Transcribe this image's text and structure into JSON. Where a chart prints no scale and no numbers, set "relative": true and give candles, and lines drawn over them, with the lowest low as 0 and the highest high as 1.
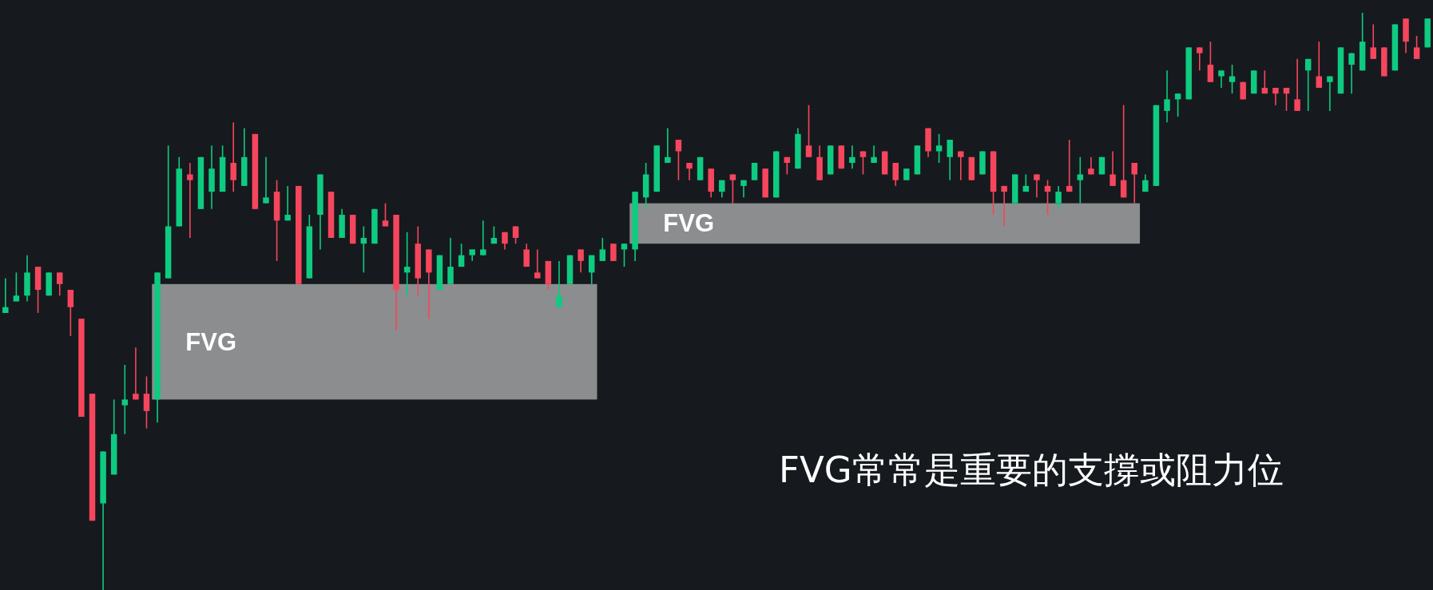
{
  "chart_data": {
    "type": "candlestick",
    "relative": true,
    "categories": [
      null,
      null,
      null,
      null,
      null,
      null,
      null,
      null,
      null,
      null,
      null,
      null,
      null,
      null,
      null,
      null,
      null,
      null,
      null,
      null,
      null,
      null,
      null,
      null,
      null,
      null,
      null,
      null,
      null,
      null,
      null,
      null,
      null,
      null,
      null,
      null,
      null,
      null,
      null,
      null,
      null,
      null,
      null,
      null,
      null,
      null,
      null,
      null,
      null,
      null,
      null,
      null,
      null,
      null,
      null,
      null,
      null,
      null,
      null,
      null,
      null,
      null,
      null,
      null,
      null,
      null,
      null,
      null,
      null,
      null,
      null,
      null,
      null,
      null,
      null,
      null,
      null,
      null,
      null,
      null,
      null,
      null,
      null,
      null,
      null,
      null,
      null,
      null,
      null,
      null,
      null,
      null,
      null,
      null,
      null,
      null,
      null,
      null,
      null,
      null,
      null,
      null,
      null,
      null,
      null,
      null,
      null,
      null,
      null,
      null,
      null,
      null,
      null,
      null,
      null,
      null,
      null,
      null,
      null,
      null,
      null,
      null,
      null,
      null,
      null,
      null,
      null,
      null,
      null,
      null,
      null,
      null
    ],
    "ohlc": [
      [
        0.48,
        0.54,
        0.48,
        0.49
      ],
      [
        0.5,
        0.55,
        0.5,
        0.51
      ],
      [
        0.51,
        0.58,
        0.5,
        0.55
      ],
      [
        0.56,
        0.56,
        0.48,
        0.52
      ],
      [
        0.51,
        0.55,
        0.51,
        0.55
      ],
      [
        0.55,
        0.55,
        0.51,
        0.53
      ],
      [
        0.52,
        0.52,
        0.44,
        0.49
      ],
      [
        0.47,
        0.47,
        0.3,
        0.3
      ],
      [
        0.34,
        0.34,
        0.12,
        0.12
      ],
      [
        0.15,
        0.24,
        0,
        0.24
      ],
      [
        0.2,
        0.33,
        0.2,
        0.27
      ],
      [
        0.32,
        0.39,
        0.27,
        0.33
      ],
      [
        0.34,
        0.42,
        0.33,
        0.33
      ],
      [
        0.34,
        0.37,
        0.28,
        0.31
      ],
      [
        0.33,
        0.55,
        0.29,
        0.55
      ],
      [
        0.54,
        0.77,
        0.54,
        0.63
      ],
      [
        0.63,
        0.75,
        0.63,
        0.73
      ],
      [
        0.72,
        0.74,
        0.61,
        0.71
      ],
      [
        0.66,
        0.75,
        0.66,
        0.75
      ],
      [
        0.69,
        0.77,
        0.66,
        0.73
      ],
      [
        0.69,
        0.77,
        0.69,
        0.75
      ],
      [
        0.74,
        0.81,
        0.69,
        0.71
      ],
      [
        0.7,
        0.8,
        0.7,
        0.75
      ],
      [
        0.79,
        0.79,
        0.66,
        0.66
      ],
      [
        0.67,
        0.75,
        0.67,
        0.68
      ],
      [
        0.69,
        0.71,
        0.57,
        0.64
      ],
      [
        0.64,
        0.7,
        0.64,
        0.65
      ],
      [
        0.7,
        0.7,
        0.53,
        0.53
      ],
      [
        0.54,
        0.65,
        0.54,
        0.63
      ],
      [
        0.65,
        0.72,
        0.59,
        0.72
      ],
      [
        0.69,
        0.69,
        0.61,
        0.61
      ],
      [
        0.61,
        0.66,
        0.61,
        0.65
      ],
      [
        0.65,
        0.65,
        0.6,
        0.6
      ],
      [
        0.6,
        0.63,
        0.55,
        0.61
      ],
      [
        0.6,
        0.66,
        0.6,
        0.66
      ],
      [
        0.64,
        0.67,
        0.63,
        0.63
      ],
      [
        0.65,
        0.65,
        0.45,
        0.52
      ],
      [
        0.55,
        0.62,
        0.51,
        0.56
      ],
      [
        0.6,
        0.63,
        0.51,
        0.54
      ],
      [
        0.59,
        0.59,
        0.47,
        0.55
      ],
      [
        0.52,
        0.58,
        0.52,
        0.58
      ],
      [
        0.53,
        0.61,
        0.53,
        0.56
      ],
      [
        0.56,
        0.6,
        0.56,
        0.58
      ],
      [
        0.58,
        0.59,
        0.57,
        0.59
      ],
      [
        0.58,
        0.64,
        0.58,
        0.59
      ],
      [
        0.6,
        0.63,
        0.6,
        0.61
      ],
      [
        0.62,
        0.62,
        0.59,
        0.6
      ],
      [
        0.63,
        0.63,
        0.6,
        0.61
      ],
      [
        0.59,
        0.6,
        0.56,
        0.56
      ],
      [
        0.55,
        0.59,
        0.54,
        0.54
      ],
      [
        0.57,
        0.57,
        0.52,
        0.53
      ],
      [
        0.49,
        0.57,
        0.49,
        0.51
      ],
      [
        0.53,
        0.58,
        0.53,
        0.58
      ],
      [
        0.59,
        0.59,
        0.55,
        0.57
      ],
      [
        0.55,
        0.58,
        0.53,
        0.58
      ],
      [
        0.57,
        0.61,
        0.57,
        0.59
      ],
      [
        0.6,
        0.6,
        0.57,
        0.57
      ],
      [
        0.59,
        0.6,
        0.56,
        0.6
      ],
      [
        0.59,
        0.69,
        0.57,
        0.69
      ],
      [
        0.68,
        0.74,
        0.66,
        0.72
      ],
      [
        0.69,
        0.77,
        0.69,
        0.77
      ],
      [
        0.74,
        0.8,
        0.74,
        0.75
      ],
      [
        0.78,
        0.78,
        0.71,
        0.76
      ],
      [
        0.74,
        0.74,
        0.71,
        0.73
      ],
      [
        0.71,
        0.75,
        0.71,
        0.75
      ],
      [
        0.73,
        0.73,
        0.68,
        0.69
      ],
      [
        0.69,
        0.71,
        0.68,
        0.71
      ],
      [
        0.72,
        0.72,
        0.67,
        0.71
      ],
      [
        0.7,
        0.71,
        0.68,
        0.71
      ],
      [
        0.71,
        0.74,
        0.71,
        0.74
      ],
      [
        0.73,
        0.73,
        0.68,
        0.68
      ],
      [
        0.68,
        0.76,
        0.68,
        0.76
      ],
      [
        0.75,
        0.75,
        0.72,
        0.74
      ],
      [
        0.73,
        0.8,
        0.73,
        0.79
      ],
      [
        0.77,
        0.84,
        0.75,
        0.75
      ],
      [
        0.75,
        0.77,
        0.71,
        0.71
      ],
      [
        0.72,
        0.77,
        0.72,
        0.77
      ],
      [
        0.77,
        0.77,
        0.73,
        0.73
      ],
      [
        0.74,
        0.77,
        0.73,
        0.75
      ],
      [
        0.76,
        0.76,
        0.72,
        0.75
      ],
      [
        0.74,
        0.77,
        0.74,
        0.75
      ],
      [
        0.76,
        0.76,
        0.72,
        0.72
      ],
      [
        0.74,
        0.74,
        0.7,
        0.71
      ],
      [
        0.71,
        0.73,
        0.71,
        0.73
      ],
      [
        0.72,
        0.77,
        0.72,
        0.77
      ],
      [
        0.8,
        0.8,
        0.75,
        0.76
      ],
      [
        0.76,
        0.79,
        0.74,
        0.77
      ],
      [
        0.75,
        0.78,
        0.71,
        0.78
      ],
      [
        0.76,
        0.76,
        0.71,
        0.75
      ],
      [
        0.75,
        0.75,
        0.71,
        0.71
      ],
      [
        0.72,
        0.76,
        0.72,
        0.76
      ],
      [
        0.76,
        0.76,
        0.65,
        0.69
      ],
      [
        0.7,
        0.7,
        0.63,
        0.69
      ],
      [
        0.67,
        0.72,
        0.67,
        0.72
      ],
      [
        0.69,
        0.72,
        0.69,
        0.7
      ],
      [
        0.72,
        0.72,
        0.68,
        0.71
      ],
      [
        0.7,
        0.71,
        0.65,
        0.69
      ],
      [
        0.67,
        0.7,
        0.66,
        0.69
      ],
      [
        0.7,
        0.78,
        0.69,
        0.69
      ],
      [
        0.71,
        0.75,
        0.67,
        0.72
      ],
      [
        0.73,
        0.75,
        0.72,
        0.72
      ],
      [
        0.72,
        0.75,
        0.72,
        0.75
      ],
      [
        0.72,
        0.76,
        0.7,
        0.7
      ],
      [
        0.71,
        0.84,
        0.68,
        0.68
      ],
      [
        0.74,
        0.74,
        0.67,
        0.72
      ],
      [
        0.69,
        0.72,
        0.69,
        0.71
      ],
      [
        0.7,
        0.84,
        0.7,
        0.84
      ],
      [
        0.83,
        0.9,
        0.81,
        0.85
      ],
      [
        0.85,
        0.86,
        0.82,
        0.86
      ],
      [
        0.85,
        0.94,
        0.85,
        0.94
      ],
      [
        0.94,
        0.94,
        0.9,
        0.93
      ],
      [
        0.91,
        0.95,
        0.88,
        0.88
      ],
      [
        0.89,
        0.9,
        0.87,
        0.9
      ],
      [
        0.88,
        0.91,
        0.86,
        0.89
      ],
      [
        0.88,
        0.88,
        0.85,
        0.85
      ],
      [
        0.86,
        0.9,
        0.86,
        0.9
      ],
      [
        0.87,
        0.9,
        0.86,
        0.86
      ],
      [
        0.87,
        0.87,
        0.84,
        0.86
      ],
      [
        0.87,
        0.87,
        0.83,
        0.86
      ],
      [
        0.85,
        0.92,
        0.83,
        0.83
      ],
      [
        0.9,
        0.92,
        0.83,
        0.92
      ],
      [
        0.89,
        0.95,
        0.87,
        0.87
      ],
      [
        0.88,
        0.89,
        0.83,
        0.89
      ],
      [
        0.86,
        0.94,
        0.86,
        0.94
      ],
      [
        0.91,
        0.93,
        0.86,
        0.93
      ],
      [
        0.9,
        1,
        0.9,
        0.95
      ],
      [
        0.94,
        0.98,
        0.92,
        0.92
      ],
      [
        0.94,
        0.94,
        0.89,
        0.89
      ],
      [
        0.9,
        0.98,
        0.9,
        0.98
      ],
      [
        0.99,
        0.99,
        0.93,
        0.95
      ],
      [
        0.94,
        0.96,
        0.92,
        0.92
      ],
      [
        0.94,
        0.99,
        0.94,
        0.99
      ]
    ],
    "colors": [
      "#0ecb81",
      "#0ecb81",
      "#0ecb81",
      "#f6465d",
      "#0ecb81",
      "#f6465d",
      "#f6465d",
      "#f6465d",
      "#f6465d",
      "#0ecb81",
      "#0ecb81",
      "#0ecb81",
      "#f6465d",
      "#f6465d",
      "#0ecb81",
      "#0ecb81",
      "#0ecb81",
      "#f6465d",
      "#0ecb81",
      "#0ecb81",
      "#0ecb81",
      "#f6465d",
      "#0ecb81",
      "#f6465d",
      "#0ecb81",
      "#f6465d",
      "#0ecb81",
      "#f6465d",
      "#0ecb81",
      "#0ecb81",
      "#f6465d",
      "#0ecb81",
      "#f6465d",
      "#0ecb81",
      "#0ecb81",
      "#f6465d",
      "#f6465d",
      "#0ecb81",
      "#f6465d",
      "#f6465d",
      "#0ecb81",
      "#0ecb81",
      "#0ecb81",
      "#0ecb81",
      "#0ecb81",
      "#0ecb81",
      "#f6465d",
      "#f6465d",
      "#f6465d",
      "#f6465d",
      "#f6465d",
      "#0ecb81",
      "#0ecb81",
      "#f6465d",
      "#0ecb81",
      "#0ecb81",
      "#f6465d",
      "#0ecb81",
      "#0ecb81",
      "#0ecb81",
      "#0ecb81",
      "#0ecb81",
      "#f6465d",
      "#f6465d",
      "#0ecb81",
      "#f6465d",
      "#0ecb81",
      "#f6465d",
      "#0ecb81",
      "#0ecb81",
      "#f6465d",
      "#0ecb81",
      "#f6465d",
      "#0ecb81",
      "#f6465d",
      "#f6465d",
      "#0ecb81",
      "#f6465d",
      "#0ecb81",
      "#f6465d",
      "#0ecb81",
      "#f6465d",
      "#f6465d",
      "#0ecb81",
      "#0ecb81",
      "#f6465d",
      "#0ecb81",
      "#0ecb81",
      "#f6465d",
      "#f6465d",
      "#0ecb81",
      "#f6465d",
      "#f6465d",
      "#0ecb81",
      "#0ecb81",
      "#f6465d",
      "#f6465d",
      "#0ecb81",
      "#f6465d",
      "#0ecb81",
      "#f6465d",
      "#0ecb81",
      "#f6465d",
      "#f6465d",
      "#f6465d",
      "#0ecb81",
      "#0ecb81",
      "#0ecb81",
      "#0ecb81",
      "#0ecb81",
      "#f6465d",
      "#f6465d",
      "#0ecb81",
      "#0ecb81",
      "#f6465d",
      "#0ecb81",
      "#f6465d",
      "#f6465d",
      "#f6465d",
      "#f6465d",
      "#0ecb81",
      "#f6465d",
      "#0ecb81",
      "#0ecb81",
      "#0ecb81",
      "#0ecb81",
      "#f6465d",
      "#f6465d",
      "#0ecb81",
      "#f6465d",
      "#f6465d",
      "#0ecb81"
    ],
    "bands": [
      {
        "axis": "y",
        "from": 0.33,
        "to": 0.53,
        "label": "FVG",
        "color": "#8c8d8e"
      },
      {
        "axis": "y",
        "from": 0.6,
        "to": 0.67,
        "label": "FVG",
        "color": "#8c8d8e"
      }
    ],
    "annotations": [
      "FVG常常是重要的支撐或阻力位"
    ]
  }
}
